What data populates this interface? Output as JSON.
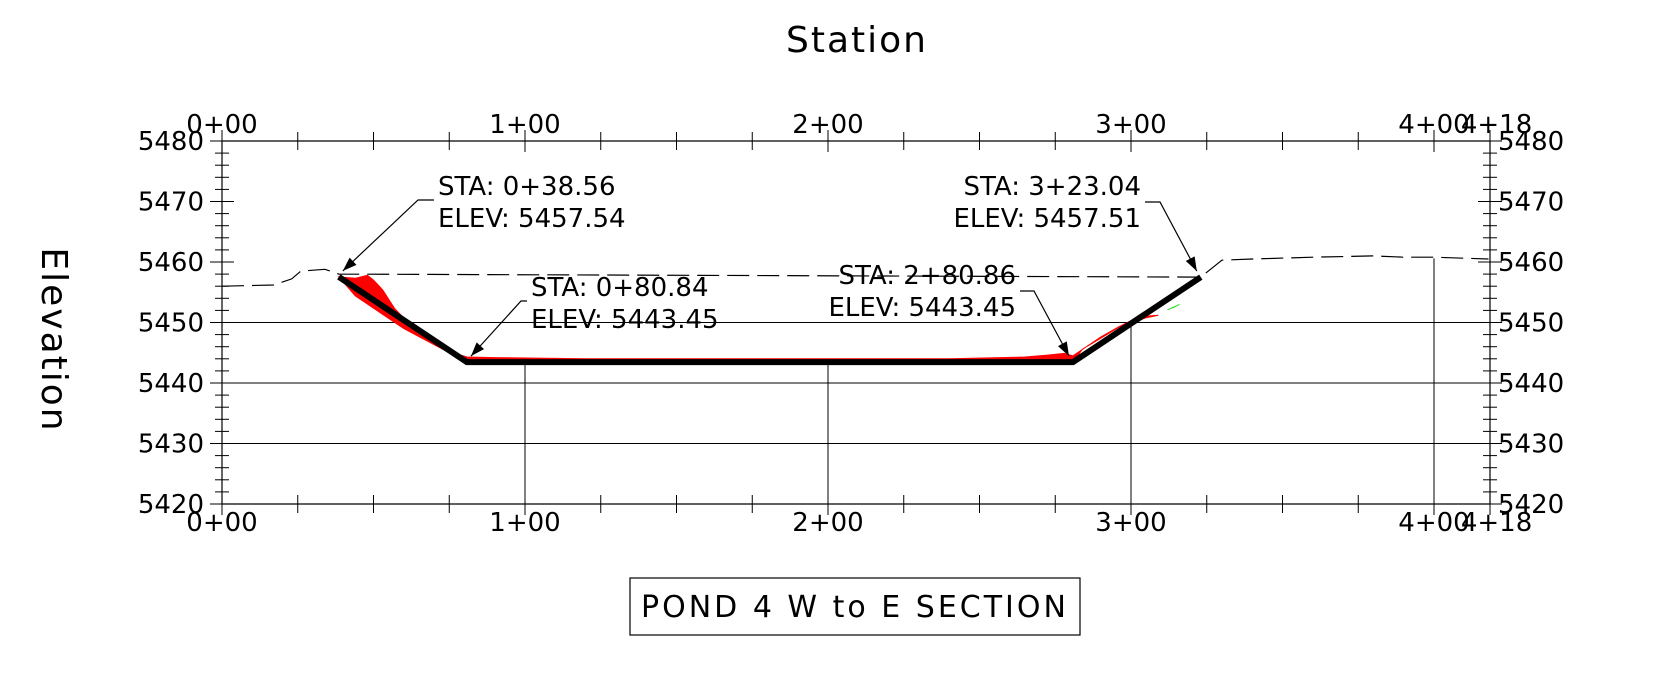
{
  "x_axis_title": "Station",
  "y_axis_title": "Elevation",
  "section_title": "POND 4 W to E SECTION",
  "chart_data": {
    "type": "line",
    "x_unit": "station (ft)",
    "y_unit": "elevation (ft)",
    "xlim": [
      0,
      418
    ],
    "ylim": [
      5420,
      5480
    ],
    "x_ticks": [
      {
        "value": 0,
        "label": "0+00"
      },
      {
        "value": 100,
        "label": "1+00"
      },
      {
        "value": 200,
        "label": "2+00"
      },
      {
        "value": 300,
        "label": "3+00"
      },
      {
        "value": 400,
        "label": "4+00"
      },
      {
        "value": 418,
        "label": "4+18"
      }
    ],
    "y_ticks": [
      5420,
      5430,
      5440,
      5450,
      5460,
      5470,
      5480
    ],
    "series": [
      {
        "role": "proposed-section",
        "color": "#000000",
        "style": "heavy",
        "x": [
          38.56,
          80.84,
          280.86,
          323.04
        ],
        "y": [
          5457.54,
          5443.45,
          5443.45,
          5457.51
        ]
      },
      {
        "role": "existing-ground",
        "color": "#000000",
        "style": "dashed",
        "x": [
          0,
          17,
          23,
          26,
          34,
          38.56,
          323.04,
          330,
          340,
          360,
          380,
          390,
          400,
          418
        ],
        "y": [
          5456.0,
          5456.2,
          5457.2,
          5458.5,
          5458.8,
          5458.0,
          5457.5,
          5460.3,
          5460.5,
          5460.8,
          5461.0,
          5460.8,
          5460.8,
          5460.5
        ]
      },
      {
        "role": "cut-area",
        "color": "#ff0000",
        "x": [
          38.56,
          44,
          48,
          50,
          53,
          57,
          62,
          68,
          75,
          80.84,
          90,
          120,
          240,
          265,
          272,
          278,
          280.86,
          290,
          296,
          300,
          304,
          309,
          305,
          296,
          288,
          284,
          280.86,
          80.84,
          60,
          44
        ],
        "y": [
          5457.54,
          5457.3,
          5457.8,
          5457.0,
          5455.4,
          5452.3,
          5449.7,
          5447.2,
          5445.2,
          5444.3,
          5444.2,
          5444.0,
          5444.0,
          5444.3,
          5444.6,
          5444.9,
          5444.5,
          5447.6,
          5449.3,
          5450.3,
          5451.0,
          5451.2,
          5450.8,
          5449.2,
          5446.8,
          5445.6,
          5443.45,
          5443.45,
          5449.0,
          5454.4
        ]
      },
      {
        "role": "fill-area",
        "color": "#22dd22",
        "x": [
          312,
          314,
          316,
          313
        ],
        "y": [
          5452.1,
          5452.5,
          5453.0,
          5452.3
        ]
      }
    ],
    "annotations": [
      {
        "line1": "STA: 0+38.56",
        "line2": "ELEV: 5457.54",
        "x": 38.56,
        "y": 5457.54
      },
      {
        "line1": "STA: 0+80.84",
        "line2": "ELEV: 5443.45",
        "x": 80.84,
        "y": 5443.45
      },
      {
        "line1": "STA: 2+80.86",
        "line2": "ELEV: 5443.45",
        "x": 280.86,
        "y": 5443.45
      },
      {
        "line1": "STA: 3+23.04",
        "line2": "ELEV: 5457.51",
        "x": 323.04,
        "y": 5457.51
      }
    ]
  }
}
